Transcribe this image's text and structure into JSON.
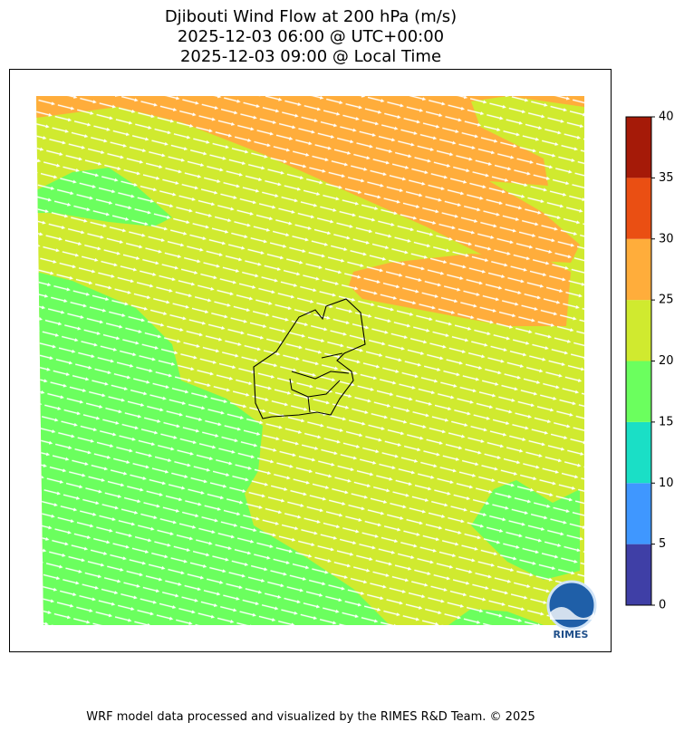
{
  "title": [
    "Djibouti Wind Flow at 200 hPa (m/s)",
    "2025-12-03 06:00 @ UTC+00:00",
    "2025-12-03 09:00 @ Local Time"
  ],
  "colorbar": {
    "range": [
      0,
      40
    ],
    "ticks": [
      0,
      5,
      10,
      15,
      20,
      25,
      30,
      35,
      40
    ],
    "colors": [
      "#3f3fa6",
      "#3f97ff",
      "#1adfc6",
      "#6bff5e",
      "#d0ea2f",
      "#ffad3b",
      "#ea4f13",
      "#a51a08"
    ]
  },
  "logo": "RIMES",
  "footer": "WRF model data processed and visualized by the RIMES R&D Team. © 2025"
}
